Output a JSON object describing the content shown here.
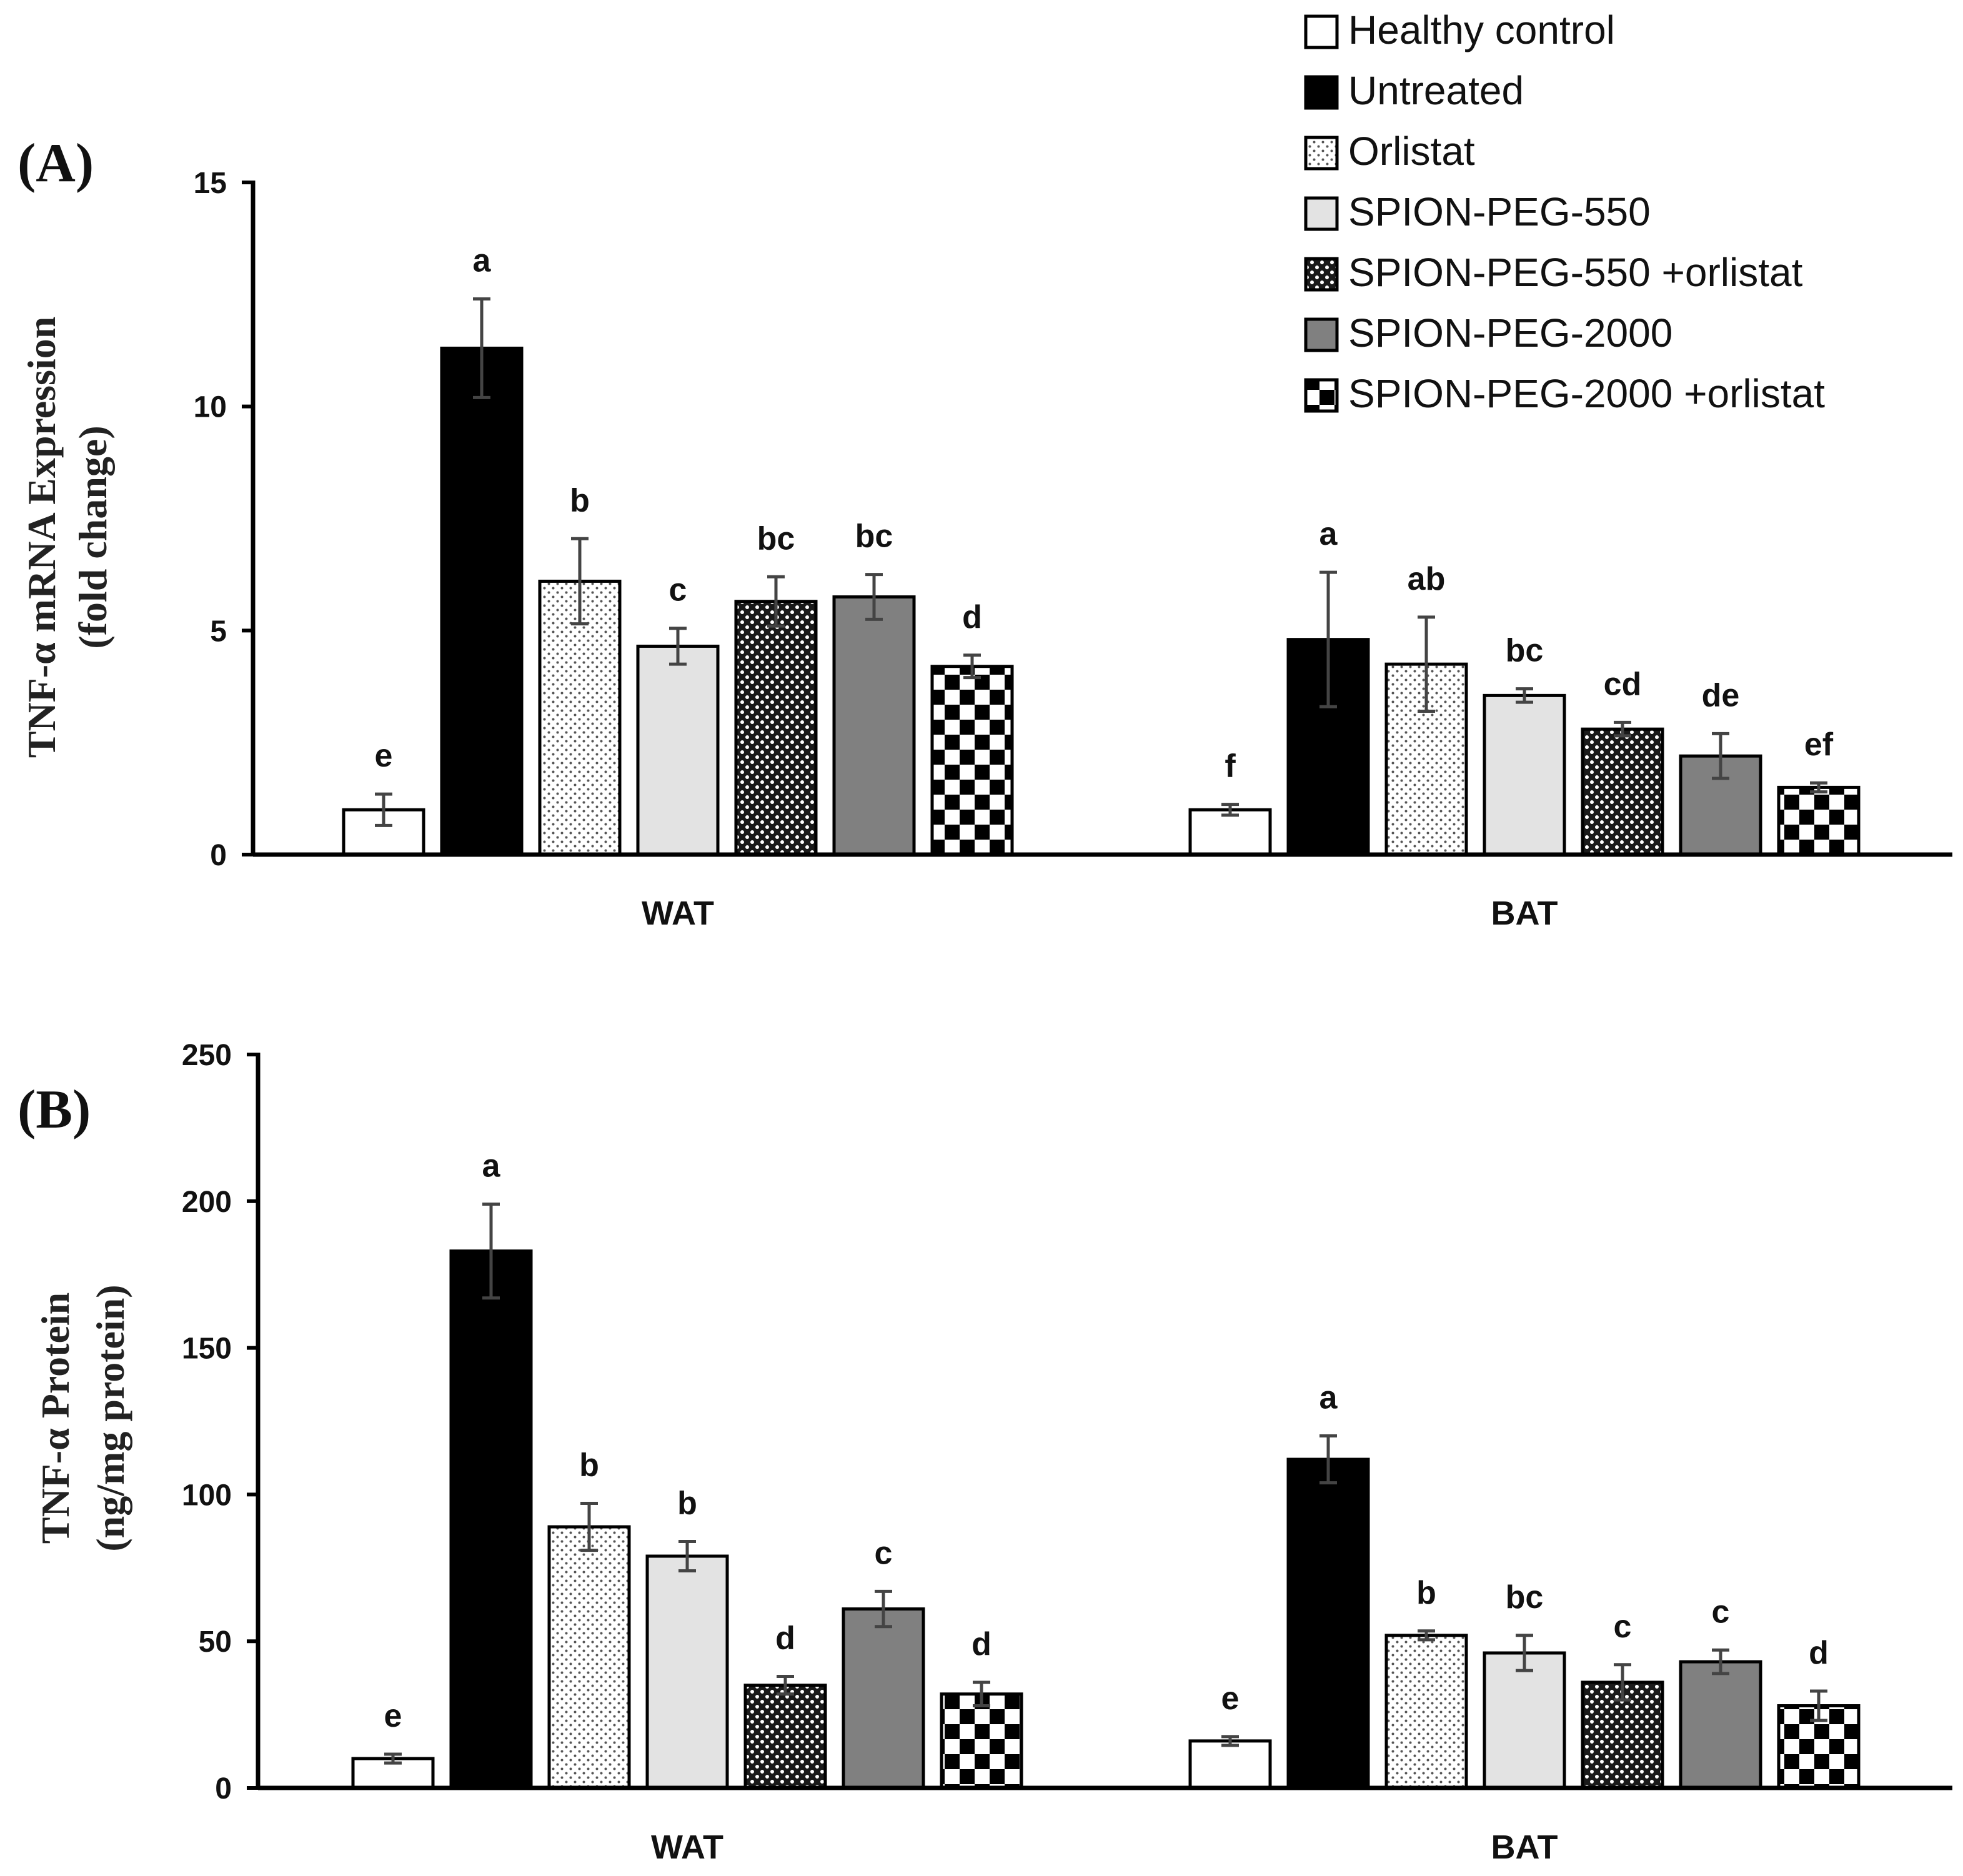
{
  "legend": {
    "items": [
      {
        "label": "Healthy control",
        "pattern": "white"
      },
      {
        "label": "Untreated",
        "pattern": "black"
      },
      {
        "label": "Orlistat",
        "pattern": "dots"
      },
      {
        "label": "SPION-PEG-550",
        "pattern": "lightgray"
      },
      {
        "label": "SPION-PEG-550 +orlistat",
        "pattern": "crosshatch"
      },
      {
        "label": "SPION-PEG-2000",
        "pattern": "gray"
      },
      {
        "label": "SPION-PEG-2000 +orlistat",
        "pattern": "checker"
      }
    ]
  },
  "colors": {
    "black": "#000000",
    "light_gray": "#e3e3e3",
    "mid_gray": "#808080",
    "error_bar": "#444444",
    "dim_label": "#666666"
  },
  "chart_data": [
    {
      "type": "bar",
      "panel_label": "(A)",
      "ylabel_line1": "TNF-α mRNA Expression",
      "ylabel_line2": "(fold change)",
      "ylim": [
        0,
        15
      ],
      "yticks": [
        "0",
        "5",
        "10",
        "15"
      ],
      "categories": [
        "WAT",
        "BAT"
      ],
      "series": [
        {
          "name": "Healthy control",
          "values": [
            1.0,
            1.0
          ],
          "errors": [
            0.35,
            0.12
          ],
          "labels": [
            "e",
            "f"
          ]
        },
        {
          "name": "Untreated",
          "values": [
            11.3,
            4.8
          ],
          "errors": [
            1.1,
            1.5
          ],
          "labels": [
            "a",
            "a"
          ]
        },
        {
          "name": "Orlistat",
          "values": [
            6.1,
            4.25
          ],
          "errors": [
            0.95,
            1.05
          ],
          "labels": [
            "b",
            "ab"
          ]
        },
        {
          "name": "SPION-PEG-550",
          "values": [
            4.65,
            3.55
          ],
          "errors": [
            0.4,
            0.15
          ],
          "labels": [
            "c",
            "bc"
          ]
        },
        {
          "name": "SPION-PEG-550 +orlistat",
          "values": [
            5.65,
            2.8
          ],
          "errors": [
            0.55,
            0.15
          ],
          "labels": [
            "bc",
            "cd"
          ]
        },
        {
          "name": "SPION-PEG-2000",
          "values": [
            5.75,
            2.2
          ],
          "errors": [
            0.5,
            0.5
          ],
          "labels": [
            "bc",
            "de"
          ]
        },
        {
          "name": "SPION-PEG-2000 +orlistat",
          "values": [
            4.2,
            1.5
          ],
          "errors": [
            0.25,
            0.1
          ],
          "labels": [
            "d",
            "ef"
          ]
        }
      ]
    },
    {
      "type": "bar",
      "panel_label": "(B)",
      "ylabel_line1": "TNF-α Protein",
      "ylabel_line2": "(ng/mg protein)",
      "ylim": [
        0,
        250
      ],
      "yticks": [
        "0",
        "50",
        "100",
        "150",
        "200",
        "250"
      ],
      "categories": [
        "WAT",
        "BAT"
      ],
      "series": [
        {
          "name": "Healthy control",
          "values": [
            10,
            16
          ],
          "errors": [
            1.5,
            1.5
          ],
          "labels": [
            "e",
            "e"
          ]
        },
        {
          "name": "Untreated",
          "values": [
            183,
            112
          ],
          "errors": [
            16,
            8
          ],
          "labels": [
            "a",
            "a"
          ]
        },
        {
          "name": "Orlistat",
          "values": [
            89,
            52
          ],
          "errors": [
            8,
            1.5
          ],
          "labels": [
            "b",
            "b"
          ]
        },
        {
          "name": "SPION-PEG-550",
          "values": [
            79,
            46
          ],
          "errors": [
            5,
            6
          ],
          "labels": [
            "b",
            "bc"
          ]
        },
        {
          "name": "SPION-PEG-550 +orlistat",
          "values": [
            35,
            36
          ],
          "errors": [
            3,
            6
          ],
          "labels": [
            "d",
            "c"
          ]
        },
        {
          "name": "SPION-PEG-2000",
          "values": [
            61,
            43
          ],
          "errors": [
            6,
            4
          ],
          "labels": [
            "c",
            "c"
          ]
        },
        {
          "name": "SPION-PEG-2000 +orlistat",
          "values": [
            32,
            28
          ],
          "errors": [
            4,
            5
          ],
          "labels": [
            "d",
            "d"
          ]
        }
      ]
    }
  ]
}
